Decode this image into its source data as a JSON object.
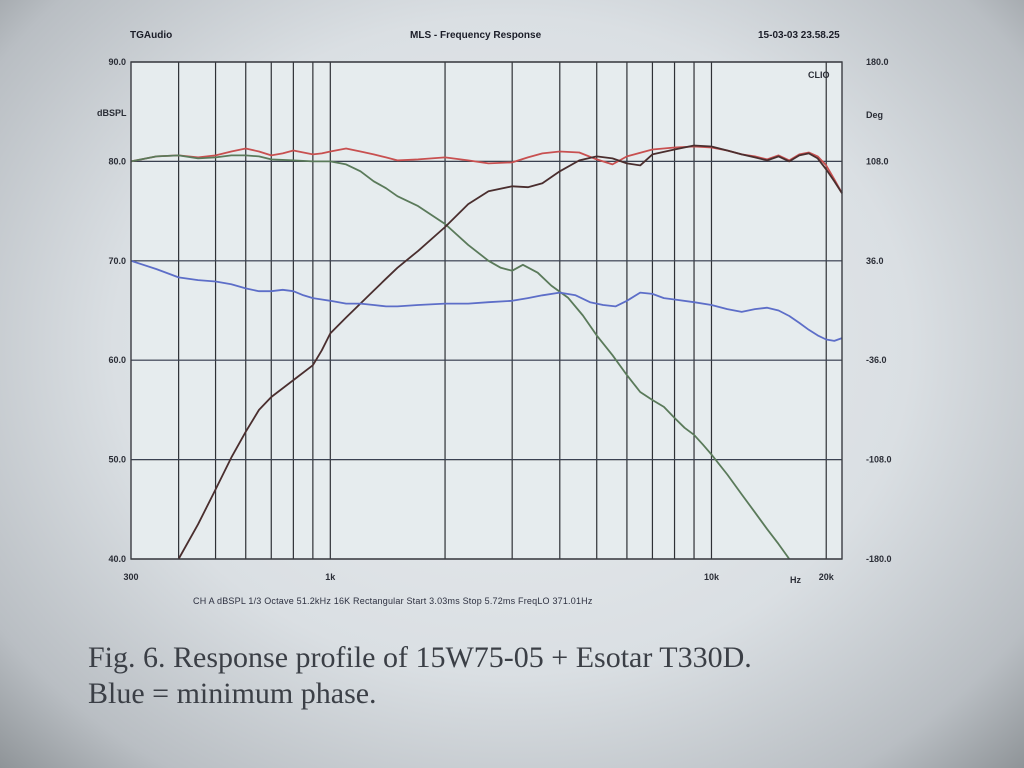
{
  "header": {
    "left": "TGAudio",
    "center": "MLS - Frequency Response",
    "right": "15-03-03 23.58.25"
  },
  "brand": "CLIO",
  "params_line": "CH A  dBSPL  1/3 Octave  51.2kHz  16K  Rectangular  Start 3.03ms  Stop 5.72ms  FreqLO 371.01Hz",
  "caption": {
    "line1": "Fig. 6. Response profile of 15W75-05 + Esotar T330D.",
    "line2": "Blue = minimum phase."
  },
  "chart_data": {
    "type": "line",
    "title": "MLS - Frequency Response",
    "x_scale": "log",
    "xlim": [
      300,
      22000
    ],
    "x_tick_labels": [
      {
        "value": 300,
        "label": "300"
      },
      {
        "value": 1000,
        "label": "1k"
      },
      {
        "value": 10000,
        "label": "10k"
      },
      {
        "value": 20000,
        "label": "20k"
      }
    ],
    "x_unit": "Hz",
    "left_axis": {
      "label": "dBSPL",
      "ylim": [
        40,
        90
      ],
      "ticks": [
        {
          "value": 90,
          "label": "90.0"
        },
        {
          "value": 80,
          "label": "80.0"
        },
        {
          "value": 70,
          "label": "70.0"
        },
        {
          "value": 60,
          "label": "60.0"
        },
        {
          "value": 50,
          "label": "50.0"
        },
        {
          "value": 40,
          "label": "40.0"
        }
      ]
    },
    "right_axis": {
      "label": "Deg",
      "ylim": [
        -180,
        180
      ],
      "ticks": [
        {
          "value": 180,
          "label": "180.0"
        },
        {
          "value": 108,
          "label": "108.0"
        },
        {
          "value": 36,
          "label": "36.0"
        },
        {
          "value": -36,
          "label": "-36.0"
        },
        {
          "value": -108,
          "label": "-108.0"
        },
        {
          "value": -180,
          "label": "-180.0"
        }
      ]
    },
    "grid": true,
    "series": [
      {
        "color": "#c85050",
        "axis": "left",
        "points": [
          [
            300,
            80.0
          ],
          [
            350,
            80.5
          ],
          [
            400,
            80.6
          ],
          [
            450,
            80.4
          ],
          [
            500,
            80.6
          ],
          [
            550,
            81.0
          ],
          [
            600,
            81.3
          ],
          [
            650,
            81.0
          ],
          [
            700,
            80.6
          ],
          [
            750,
            80.8
          ],
          [
            800,
            81.1
          ],
          [
            850,
            80.9
          ],
          [
            900,
            80.7
          ],
          [
            950,
            80.8
          ],
          [
            1000,
            81.0
          ],
          [
            1100,
            81.3
          ],
          [
            1200,
            81.0
          ],
          [
            1300,
            80.7
          ],
          [
            1400,
            80.4
          ],
          [
            1500,
            80.1
          ],
          [
            1700,
            80.2
          ],
          [
            2000,
            80.4
          ],
          [
            2300,
            80.1
          ],
          [
            2600,
            79.8
          ],
          [
            3000,
            79.9
          ],
          [
            3300,
            80.4
          ],
          [
            3600,
            80.8
          ],
          [
            4000,
            81.0
          ],
          [
            4500,
            80.9
          ],
          [
            5000,
            80.2
          ],
          [
            5500,
            79.7
          ],
          [
            6000,
            80.5
          ],
          [
            7000,
            81.2
          ],
          [
            8000,
            81.4
          ],
          [
            9000,
            81.5
          ],
          [
            10000,
            81.4
          ],
          [
            11000,
            81.1
          ],
          [
            12000,
            80.7
          ],
          [
            13000,
            80.5
          ],
          [
            14000,
            80.2
          ],
          [
            15000,
            80.6
          ],
          [
            16000,
            80.1
          ],
          [
            17000,
            80.7
          ],
          [
            18000,
            80.9
          ],
          [
            19000,
            80.5
          ],
          [
            20000,
            79.6
          ],
          [
            21000,
            78.2
          ],
          [
            22000,
            76.8
          ]
        ]
      },
      {
        "color": "#5a7a5a",
        "axis": "left",
        "points": [
          [
            300,
            80.0
          ],
          [
            350,
            80.5
          ],
          [
            400,
            80.6
          ],
          [
            450,
            80.3
          ],
          [
            500,
            80.4
          ],
          [
            550,
            80.6
          ],
          [
            600,
            80.6
          ],
          [
            650,
            80.5
          ],
          [
            700,
            80.2
          ],
          [
            800,
            80.1
          ],
          [
            900,
            80.0
          ],
          [
            1000,
            80.0
          ],
          [
            1100,
            79.7
          ],
          [
            1200,
            79.0
          ],
          [
            1300,
            78.0
          ],
          [
            1400,
            77.3
          ],
          [
            1500,
            76.5
          ],
          [
            1700,
            75.5
          ],
          [
            2000,
            73.7
          ],
          [
            2300,
            71.6
          ],
          [
            2600,
            70.0
          ],
          [
            2800,
            69.3
          ],
          [
            3000,
            69.0
          ],
          [
            3200,
            69.6
          ],
          [
            3500,
            68.8
          ],
          [
            3800,
            67.5
          ],
          [
            4200,
            66.3
          ],
          [
            4600,
            64.5
          ],
          [
            5000,
            62.5
          ],
          [
            5500,
            60.5
          ],
          [
            6000,
            58.5
          ],
          [
            6500,
            56.8
          ],
          [
            7000,
            56.0
          ],
          [
            7500,
            55.3
          ],
          [
            8000,
            54.2
          ],
          [
            8500,
            53.2
          ],
          [
            9000,
            52.5
          ],
          [
            9500,
            51.5
          ],
          [
            10000,
            50.5
          ],
          [
            11000,
            48.5
          ],
          [
            12000,
            46.5
          ],
          [
            13000,
            44.7
          ],
          [
            14000,
            43.0
          ],
          [
            15000,
            41.5
          ],
          [
            16000,
            40.0
          ]
        ]
      },
      {
        "color": "#4a2e2e",
        "axis": "left",
        "points": [
          [
            400,
            40.0
          ],
          [
            450,
            43.5
          ],
          [
            500,
            47.0
          ],
          [
            550,
            50.2
          ],
          [
            600,
            52.8
          ],
          [
            650,
            55.0
          ],
          [
            700,
            56.3
          ],
          [
            800,
            58.0
          ],
          [
            900,
            59.5
          ],
          [
            950,
            61.0
          ],
          [
            1000,
            62.7
          ],
          [
            1100,
            64.3
          ],
          [
            1200,
            65.7
          ],
          [
            1300,
            67.0
          ],
          [
            1400,
            68.2
          ],
          [
            1500,
            69.3
          ],
          [
            1700,
            71.0
          ],
          [
            2000,
            73.4
          ],
          [
            2300,
            75.7
          ],
          [
            2600,
            77.0
          ],
          [
            3000,
            77.5
          ],
          [
            3300,
            77.4
          ],
          [
            3600,
            77.8
          ],
          [
            4000,
            79.0
          ],
          [
            4500,
            80.1
          ],
          [
            5000,
            80.5
          ],
          [
            5500,
            80.3
          ],
          [
            6000,
            79.8
          ],
          [
            6500,
            79.6
          ],
          [
            7000,
            80.7
          ],
          [
            8000,
            81.2
          ],
          [
            9000,
            81.6
          ],
          [
            10000,
            81.5
          ],
          [
            11000,
            81.1
          ],
          [
            12000,
            80.7
          ],
          [
            13000,
            80.4
          ],
          [
            14000,
            80.1
          ],
          [
            15000,
            80.5
          ],
          [
            16000,
            80.0
          ],
          [
            17000,
            80.6
          ],
          [
            18000,
            80.8
          ],
          [
            19000,
            80.3
          ],
          [
            20000,
            79.2
          ],
          [
            21000,
            78.0
          ],
          [
            22000,
            76.8
          ]
        ]
      },
      {
        "color": "#5d6ec8",
        "axis": "right",
        "points": [
          [
            300,
            36
          ],
          [
            350,
            30
          ],
          [
            400,
            24
          ],
          [
            450,
            22
          ],
          [
            500,
            21
          ],
          [
            550,
            19
          ],
          [
            600,
            16
          ],
          [
            650,
            14
          ],
          [
            700,
            14
          ],
          [
            750,
            15
          ],
          [
            800,
            14
          ],
          [
            850,
            11
          ],
          [
            900,
            9
          ],
          [
            950,
            8
          ],
          [
            1000,
            7
          ],
          [
            1100,
            5
          ],
          [
            1200,
            5
          ],
          [
            1300,
            4
          ],
          [
            1400,
            3
          ],
          [
            1500,
            3
          ],
          [
            1700,
            4
          ],
          [
            2000,
            5
          ],
          [
            2300,
            5
          ],
          [
            2600,
            6
          ],
          [
            3000,
            7
          ],
          [
            3300,
            9
          ],
          [
            3600,
            11
          ],
          [
            4000,
            13
          ],
          [
            4400,
            11
          ],
          [
            4800,
            6
          ],
          [
            5200,
            4
          ],
          [
            5600,
            3
          ],
          [
            6000,
            7
          ],
          [
            6500,
            13
          ],
          [
            7000,
            12
          ],
          [
            7500,
            9
          ],
          [
            8000,
            8
          ],
          [
            9000,
            6
          ],
          [
            10000,
            4
          ],
          [
            11000,
            1
          ],
          [
            12000,
            -1
          ],
          [
            13000,
            1
          ],
          [
            14000,
            2
          ],
          [
            15000,
            0
          ],
          [
            16000,
            -4
          ],
          [
            17000,
            -9
          ],
          [
            18000,
            -14
          ],
          [
            19000,
            -18
          ],
          [
            20000,
            -21
          ],
          [
            21000,
            -22
          ],
          [
            22000,
            -20
          ]
        ]
      }
    ]
  }
}
